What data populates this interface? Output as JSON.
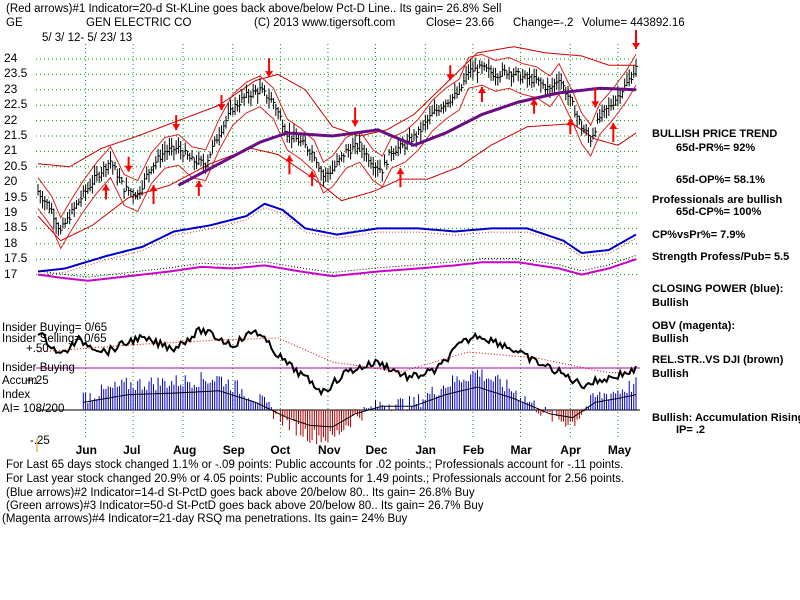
{
  "header": {
    "line1": "(Red arrows)#1 Indicator=20-d St-KLine goes back above/below Pct-D Line.. Its gain= 26.8% Sell",
    "symbol": "GE",
    "company": "GEN ELECTRIC CO",
    "copyright": "(C) 2013 www.tigersoft.com",
    "close_text": "Close=  23.66",
    "change_text": "Change=-.2",
    "volume_text": "Volume= 443892.16",
    "date_range": "5/ 3/ 12-  5/ 23/ 13"
  },
  "left_labels": {
    "insider_buying_count": "Insider Buying= 0/65",
    "insider_selling_count": "Insider Selling= 0/65",
    "plus50": "+.50",
    "insider_buying": "Insider Buying",
    "accum": "Accum",
    "plus25": "+.25",
    "index": "Index",
    "ai": "AI= 108/200",
    "minus25": "-.25"
  },
  "right_panel": {
    "trend_title": "BULLISH PRICE TREND",
    "pr": "65d-PR%= 92%",
    "op": "65d-OP%= 58.1%",
    "pros": "Professionals are bullish",
    "cp": "65d-CP%= 100%",
    "cpvspr": "CP%vsPr%=  7.9%",
    "strength": "Strength Profess/Pub= 5.5",
    "closing_power": "CLOSING POWER (blue):",
    "bullish1": "Bullish",
    "obv": "OBV (magenta):",
    "bullish2": "Bullish",
    "relstr": "REL.STR..VS DJI (brown)",
    "bullish3": "Bullish",
    "accum_rising": "Bullish: Accumulation Rising",
    "ip": "IP=  .2"
  },
  "bottom_text": {
    "line1": "For Last 65 days stock changed  1.1% or -.09 points:  Public accounts for  .02 points.;  Professionals account for -.11 points.",
    "line2": "For Last year stock changed  20.9% or  4.05 points:  Public accounts for  1.49 points.;  Professionals account for  2.56 points.",
    "line3": "(Blue arrows)#2 Indicator=14-d St-PctD goes back above 20/below 80.. Its gain= 26.8% Buy",
    "line4": "(Green arrows)#3 Indicator=50-d St-PctD goes back above 20/below 80.. Its gain= 26.7% Buy",
    "line5": "(Magenta arrows)#4 Indicator=21-day RSQ ma penetrations. Its gain= 24% Buy"
  },
  "chart_data": {
    "type": "line",
    "title": "GEN ELECTRIC CO (GE) daily price chart with indicators",
    "ylim": [
      16.5,
      24.3
    ],
    "y_ticks": [
      24,
      23.5,
      23,
      22.5,
      22,
      21.5,
      21,
      20.5,
      20,
      19.5,
      19,
      18.5,
      18,
      17.5,
      17
    ],
    "y_tick_labels": [
      "24",
      "23.5",
      "23",
      "22.5",
      "22",
      "21.5",
      "21",
      "20.5",
      "20",
      "19.5",
      "19",
      "18.5",
      "18",
      "17.5",
      "17"
    ],
    "months": [
      "Jun",
      "Jul",
      "Aug",
      "Sep",
      "Oct",
      "Nov",
      "Dec",
      "Jan",
      "Feb",
      "Mar",
      "Apr",
      "May"
    ],
    "month_index": [
      21,
      42,
      64,
      86,
      107,
      128,
      149,
      171,
      192,
      213,
      235,
      256
    ],
    "n_days": 264,
    "price_anchors": [
      [
        0,
        19.7
      ],
      [
        6,
        19.1
      ],
      [
        10,
        18.4
      ],
      [
        14,
        18.9
      ],
      [
        20,
        19.6
      ],
      [
        26,
        20.2
      ],
      [
        32,
        20.7
      ],
      [
        38,
        19.8
      ],
      [
        44,
        19.6
      ],
      [
        50,
        20.5
      ],
      [
        56,
        21.0
      ],
      [
        62,
        21.1
      ],
      [
        68,
        20.7
      ],
      [
        74,
        20.6
      ],
      [
        80,
        21.6
      ],
      [
        86,
        22.4
      ],
      [
        92,
        22.8
      ],
      [
        98,
        23.0
      ],
      [
        104,
        22.6
      ],
      [
        110,
        21.6
      ],
      [
        116,
        21.3
      ],
      [
        122,
        20.9
      ],
      [
        126,
        20.2
      ],
      [
        130,
        20.4
      ],
      [
        136,
        21.0
      ],
      [
        142,
        21.2
      ],
      [
        148,
        20.6
      ],
      [
        152,
        20.4
      ],
      [
        156,
        21.0
      ],
      [
        162,
        21.2
      ],
      [
        168,
        21.6
      ],
      [
        174,
        22.2
      ],
      [
        180,
        22.6
      ],
      [
        186,
        22.9
      ],
      [
        190,
        23.6
      ],
      [
        196,
        23.7
      ],
      [
        202,
        23.5
      ],
      [
        208,
        23.6
      ],
      [
        214,
        23.4
      ],
      [
        220,
        23.3
      ],
      [
        226,
        23.0
      ],
      [
        230,
        23.4
      ],
      [
        236,
        22.5
      ],
      [
        240,
        21.8
      ],
      [
        244,
        21.4
      ],
      [
        248,
        22.1
      ],
      [
        254,
        22.6
      ],
      [
        260,
        23.2
      ],
      [
        264,
        23.7
      ]
    ],
    "ma_anchors": [
      [
        62,
        19.9
      ],
      [
        80,
        20.6
      ],
      [
        98,
        21.3
      ],
      [
        110,
        21.6
      ],
      [
        130,
        21.5
      ],
      [
        150,
        21.7
      ],
      [
        166,
        21.2
      ],
      [
        180,
        21.6
      ],
      [
        196,
        22.2
      ],
      [
        212,
        22.6
      ],
      [
        230,
        22.9
      ],
      [
        248,
        23.05
      ],
      [
        264,
        23.0
      ]
    ],
    "upper_band_anchors": [
      [
        0,
        20.6
      ],
      [
        14,
        20.5
      ],
      [
        28,
        21.1
      ],
      [
        44,
        21.5
      ],
      [
        62,
        22.0
      ],
      [
        80,
        22.5
      ],
      [
        96,
        23.3
      ],
      [
        106,
        23.5
      ],
      [
        118,
        23.0
      ],
      [
        130,
        21.8
      ],
      [
        142,
        21.5
      ],
      [
        154,
        21.7
      ],
      [
        166,
        22.2
      ],
      [
        180,
        23.2
      ],
      [
        194,
        24.2
      ],
      [
        210,
        24.4
      ],
      [
        224,
        24.2
      ],
      [
        240,
        24.1
      ],
      [
        252,
        23.8
      ],
      [
        264,
        23.8
      ]
    ],
    "lower_band_anchors": [
      [
        0,
        18.9
      ],
      [
        10,
        18.1
      ],
      [
        24,
        18.6
      ],
      [
        40,
        19.5
      ],
      [
        58,
        19.9
      ],
      [
        76,
        20.6
      ],
      [
        94,
        21.1
      ],
      [
        106,
        20.9
      ],
      [
        122,
        20.1
      ],
      [
        134,
        19.4
      ],
      [
        148,
        19.7
      ],
      [
        160,
        20.1
      ],
      [
        172,
        20.1
      ],
      [
        186,
        20.5
      ],
      [
        200,
        21.2
      ],
      [
        216,
        21.8
      ],
      [
        236,
        21.9
      ],
      [
        246,
        21.4
      ],
      [
        256,
        21.2
      ],
      [
        264,
        21.6
      ]
    ],
    "closing_power_anchors": [
      [
        0,
        17.1
      ],
      [
        12,
        17.2
      ],
      [
        30,
        17.6
      ],
      [
        46,
        17.9
      ],
      [
        60,
        18.4
      ],
      [
        76,
        18.6
      ],
      [
        92,
        18.9
      ],
      [
        100,
        19.3
      ],
      [
        108,
        19.1
      ],
      [
        118,
        18.5
      ],
      [
        132,
        18.3
      ],
      [
        150,
        18.5
      ],
      [
        168,
        18.5
      ],
      [
        184,
        18.4
      ],
      [
        200,
        18.5
      ],
      [
        216,
        18.5
      ],
      [
        232,
        18.1
      ],
      [
        240,
        17.7
      ],
      [
        252,
        17.8
      ],
      [
        264,
        18.3
      ]
    ],
    "obv_anchors": [
      [
        0,
        17.0
      ],
      [
        10,
        16.9
      ],
      [
        22,
        16.8
      ],
      [
        40,
        16.95
      ],
      [
        58,
        17.1
      ],
      [
        72,
        17.25
      ],
      [
        86,
        17.2
      ],
      [
        100,
        17.3
      ],
      [
        116,
        17.1
      ],
      [
        130,
        16.95
      ],
      [
        150,
        17.1
      ],
      [
        168,
        17.2
      ],
      [
        184,
        17.3
      ],
      [
        196,
        17.4
      ],
      [
        212,
        17.4
      ],
      [
        230,
        17.2
      ],
      [
        240,
        17.0
      ],
      [
        252,
        17.2
      ],
      [
        264,
        17.5
      ]
    ],
    "accum_anchors": [
      [
        0,
        -0.1
      ],
      [
        20,
        0.1
      ],
      [
        40,
        0.2
      ],
      [
        60,
        0.22
      ],
      [
        80,
        0.25
      ],
      [
        96,
        0.1
      ],
      [
        110,
        -0.1
      ],
      [
        120,
        -0.2
      ],
      [
        130,
        -0.22
      ],
      [
        140,
        -0.05
      ],
      [
        152,
        0.05
      ],
      [
        166,
        0.05
      ],
      [
        180,
        0.2
      ],
      [
        194,
        0.3
      ],
      [
        210,
        0.15
      ],
      [
        226,
        -0.05
      ],
      [
        236,
        -0.1
      ],
      [
        246,
        0.1
      ],
      [
        256,
        0.15
      ],
      [
        264,
        0.2
      ]
    ],
    "red_up_arrows": [
      51,
      111,
      160,
      254
    ],
    "red_down_arrows": [
      102,
      140,
      246,
      264
    ],
    "red_small_down_arrows": [
      40,
      61,
      81,
      182
    ],
    "red_small_up_arrows": [
      30,
      71,
      121,
      196,
      219,
      235
    ]
  }
}
